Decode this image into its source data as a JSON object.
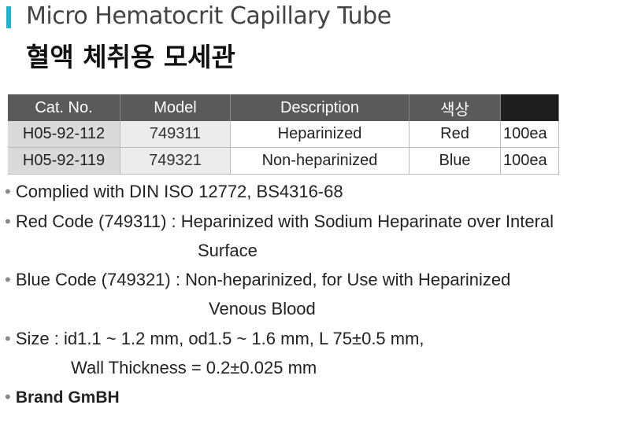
{
  "header": {
    "title_en": "Micro Hematocrit Capillary Tube",
    "title_ko": "혈액 체취용 모세관",
    "accent": "#1fb2d1"
  },
  "table": {
    "columns": [
      "Cat. No.",
      "Model",
      "Description",
      "색상",
      ""
    ],
    "rows": [
      [
        "H05-92-112",
        "749311",
        "Heparinized",
        "Red",
        "100ea"
      ],
      [
        "H05-92-119",
        "749321",
        "Non-heparinized",
        "Blue",
        "100ea"
      ]
    ]
  },
  "bullets": [
    {
      "text": "Complied with DIN ISO 12772, BS4316-68"
    },
    {
      "text": "Red Code (749311) : Heparinized with Sodium Heparinate over Interal",
      "cont": "Surface"
    },
    {
      "text": "Blue Code (749321) : Non-heparinized, for Use with Heparinized",
      "cont": "Venous Blood"
    },
    {
      "text": "Size : id1.1 ~ 1.2 mm, od1.5 ~ 1.6 mm, L 75±0.5 mm,",
      "cont": "Wall Thickness = 0.2±0.025 mm"
    },
    {
      "text": "Brand GmBH"
    }
  ],
  "bullet_char": "•"
}
